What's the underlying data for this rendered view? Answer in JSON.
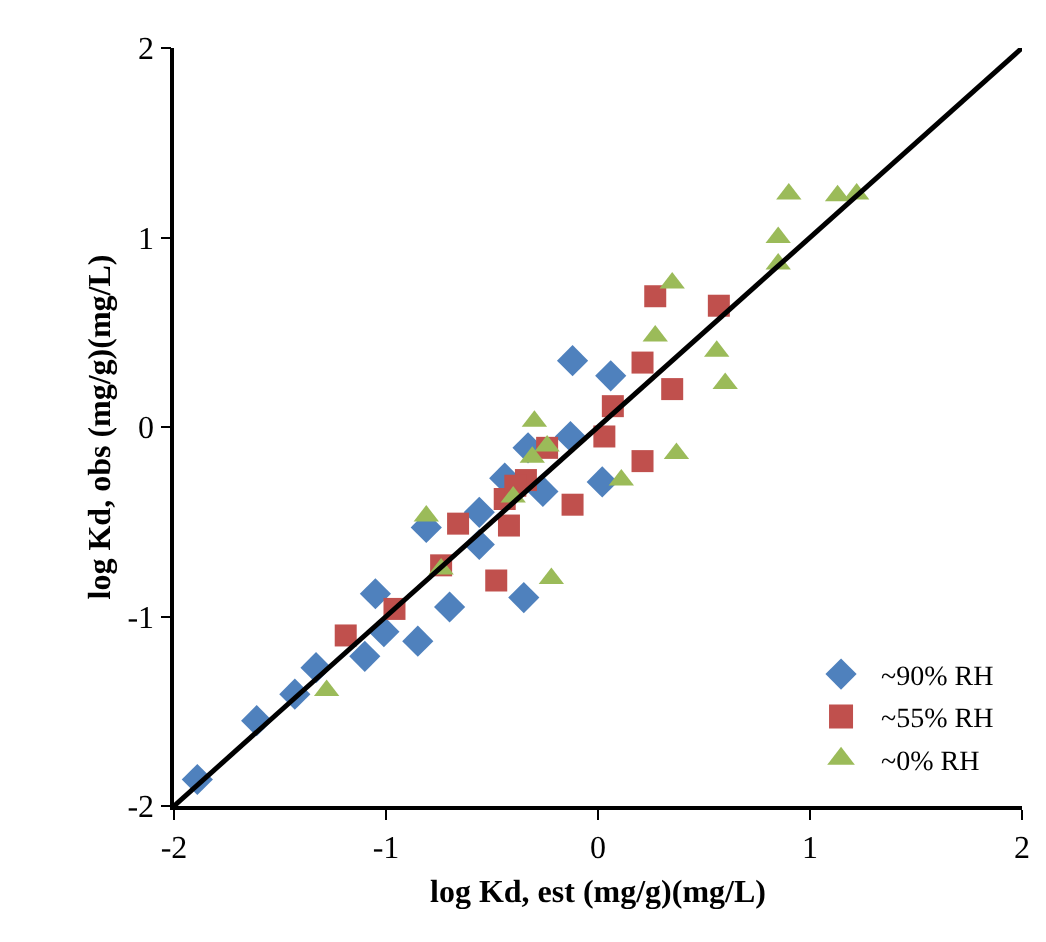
{
  "chart_data": {
    "type": "scatter",
    "xlabel": "log Kd, est (mg/g)(mg/L)",
    "ylabel": "log Kd, obs (mg/g)(mg/L)",
    "xlim": [
      -2,
      2
    ],
    "ylim": [
      -2,
      2
    ],
    "xticks": [
      -2,
      -1,
      0,
      1,
      2
    ],
    "yticks": [
      -2,
      -1,
      0,
      1,
      2
    ],
    "legend": "bottom right",
    "series": [
      {
        "name": "~90% RH",
        "color": "#4f81bd",
        "marker": "diamond",
        "x": [
          -1.89,
          -1.61,
          -1.43,
          -1.33,
          -1.1,
          -1.01,
          -1.05,
          -0.85,
          -0.7,
          -0.81,
          -0.56,
          -0.56,
          -0.35,
          -0.26,
          0.02,
          -0.12,
          0.06,
          -0.13,
          -0.33,
          -0.44
        ],
        "values": [
          -1.86,
          -1.55,
          -1.41,
          -1.27,
          -1.21,
          -1.08,
          -0.88,
          -1.13,
          -0.95,
          -0.53,
          -0.62,
          -0.45,
          -0.9,
          -0.34,
          -0.29,
          0.35,
          0.27,
          -0.05,
          -0.11,
          -0.27
        ]
      },
      {
        "name": "~55% RH",
        "color": "#c0504d",
        "marker": "square",
        "x": [
          -1.19,
          -0.96,
          -0.74,
          -0.48,
          -0.66,
          -0.42,
          -0.12,
          -0.44,
          -0.34,
          -0.24,
          0.03,
          0.07,
          0.21,
          0.35,
          0.21,
          0.27,
          0.57,
          -0.39
        ],
        "values": [
          -1.1,
          -0.96,
          -0.73,
          -0.81,
          -0.51,
          -0.52,
          -0.41,
          -0.38,
          -0.28,
          -0.11,
          -0.05,
          0.11,
          0.34,
          0.2,
          -0.18,
          0.69,
          0.64,
          -0.31
        ]
      },
      {
        "name": "~0% RH",
        "color": "#9bbb59",
        "marker": "triangle",
        "x": [
          -1.28,
          -0.81,
          -0.74,
          -0.22,
          -0.4,
          -0.31,
          -0.3,
          -0.24,
          0.11,
          0.37,
          0.27,
          0.56,
          0.6,
          0.35,
          0.9,
          0.85,
          0.85,
          1.13,
          1.22
        ],
        "values": [
          -1.39,
          -0.47,
          -0.75,
          -0.8,
          -0.37,
          -0.16,
          0.03,
          -0.1,
          -0.28,
          -0.14,
          0.48,
          0.4,
          0.23,
          0.76,
          1.23,
          1.0,
          0.86,
          1.22,
          1.23
        ]
      },
      {
        "type": "line",
        "color": "#000000",
        "marker": "none",
        "line_style": "solid",
        "x": [
          -2,
          2
        ],
        "values": [
          -2,
          2
        ]
      }
    ]
  }
}
